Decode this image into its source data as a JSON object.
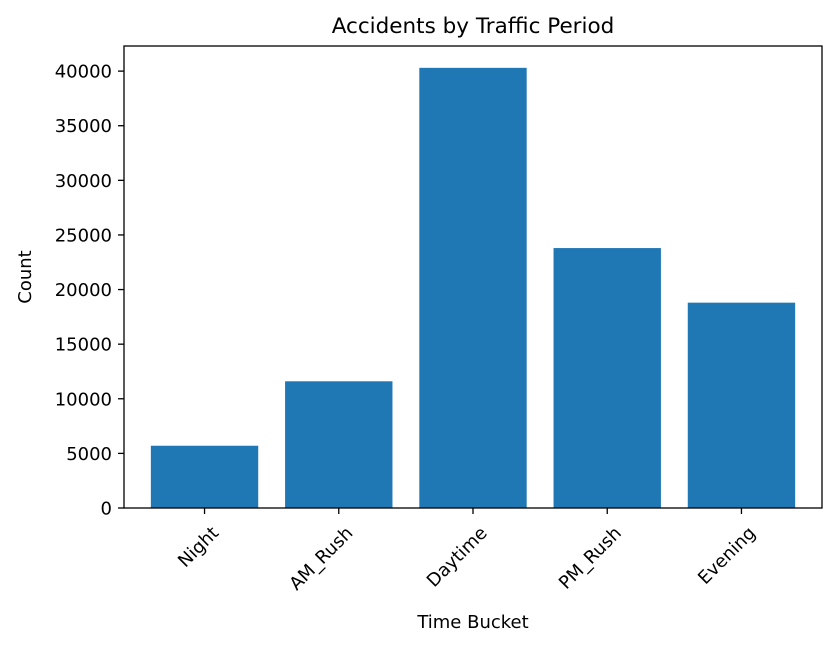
{
  "chart_data": {
    "type": "bar",
    "title": "Accidents by Traffic Period",
    "xlabel": "Time Bucket",
    "ylabel": "Count",
    "categories": [
      "Night",
      "AM_Rush",
      "Daytime",
      "PM_Rush",
      "Evening"
    ],
    "values": [
      5700,
      11600,
      40300,
      23800,
      18800
    ],
    "ylim": [
      0,
      42300
    ],
    "yticks": [
      0,
      5000,
      10000,
      15000,
      20000,
      25000,
      30000,
      35000,
      40000
    ],
    "grid": false,
    "legend": "none",
    "bar_color": "#1f77b4"
  }
}
